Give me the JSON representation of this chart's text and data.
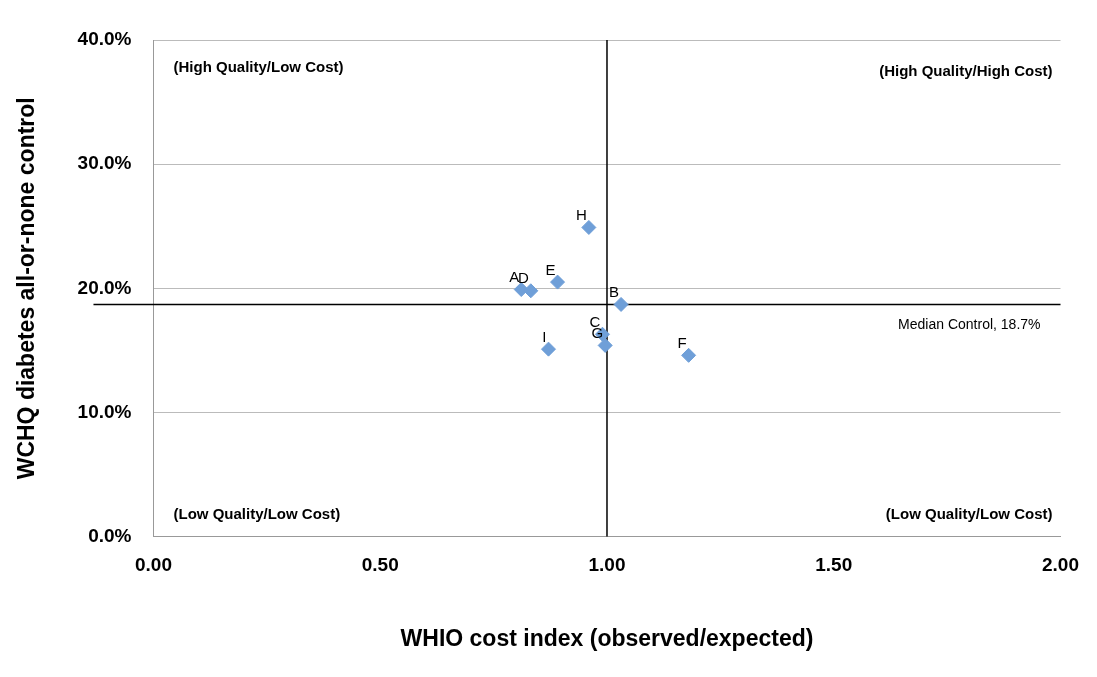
{
  "chart_data": {
    "type": "scatter",
    "xlabel": "WHIO cost index (observed/expected)",
    "ylabel": "WCHQ diabetes all-or-none control",
    "series": [
      {
        "color": "#6f9fd8",
        "x": [
          0.811,
          1.031,
          0.99,
          0.832,
          0.891,
          1.18,
          0.996,
          0.96,
          0.871
        ],
        "values": [
          19.9,
          18.7,
          16.3,
          19.8,
          20.5,
          14.6,
          15.4,
          24.9,
          15.1
        ]
      }
    ],
    "marker": "diamond",
    "legend": false,
    "grid": "y",
    "xlim": [
      0,
      2
    ],
    "xticks": [
      {
        "value": 0,
        "label": "0.00"
      },
      {
        "value": 0.5,
        "label": "0.50"
      },
      {
        "value": 1,
        "label": "1.00"
      },
      {
        "value": 1.5,
        "label": "1.50"
      },
      {
        "value": 2,
        "label": "2.00"
      }
    ],
    "ylim": [
      0,
      40
    ],
    "yticks": [
      {
        "value": 0,
        "label": "0.0%"
      },
      {
        "value": 10,
        "label": "10.0%"
      },
      {
        "value": 20,
        "label": "20.0%"
      },
      {
        "value": 30,
        "label": "30.0%"
      },
      {
        "value": 40,
        "label": "40.0%"
      }
    ],
    "ref_lines": [
      {
        "axis": "x",
        "value": 1,
        "color": "#000000"
      },
      {
        "axis": "y",
        "value": 18.7,
        "label": "Median Control, 18.7%",
        "color": "#000000"
      }
    ],
    "annotations": [
      "(High Quality/Low Cost)",
      "(High Quality/High Cost)",
      "(Low Quality/Low Cost)",
      "(Low Quality/Low Cost)",
      {
        "text": "A",
        "x": 0.811,
        "y": 19.9
      },
      {
        "text": "B",
        "x": 1.031,
        "y": 18.7
      },
      {
        "text": "C",
        "x": 0.99,
        "y": 16.3
      },
      {
        "text": "D",
        "x": 0.832,
        "y": 19.8
      },
      {
        "text": "E",
        "x": 0.891,
        "y": 20.5
      },
      {
        "text": "F",
        "x": 1.18,
        "y": 14.6
      },
      {
        "text": "G",
        "x": 0.996,
        "y": 15.4
      },
      {
        "text": "H",
        "x": 0.96,
        "y": 24.9
      },
      {
        "text": "I",
        "x": 0.871,
        "y": 15.1
      }
    ]
  }
}
